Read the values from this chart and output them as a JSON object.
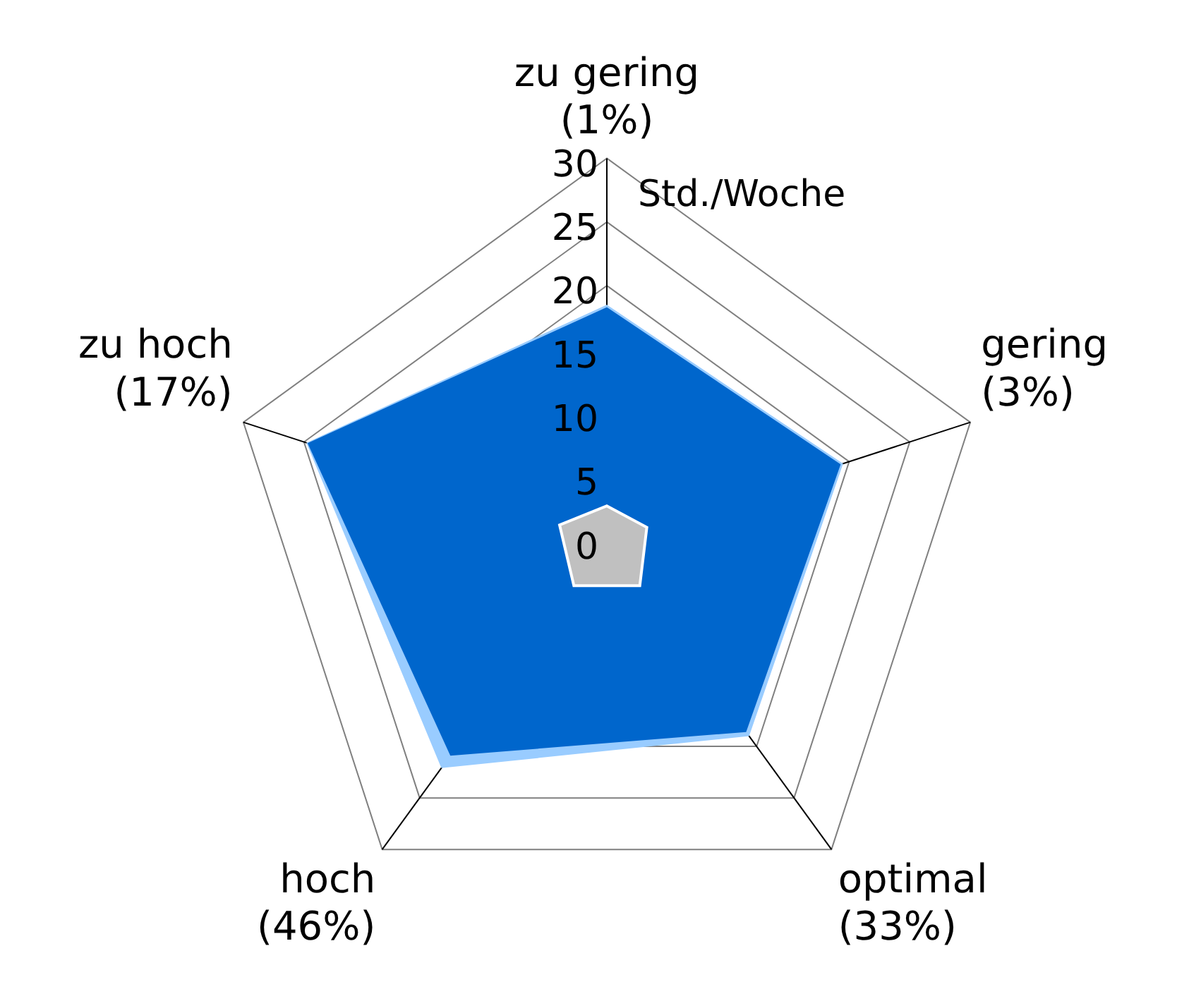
{
  "chart_data": {
    "type": "radar",
    "categories": [
      "zu gering\n(1%)",
      "gering\n(3%)",
      "optimal\n(33%)",
      "hoch\n(46%)",
      "zu hoch\n(17%)"
    ],
    "series": [
      {
        "color": "#99ccff",
        "values": [
          18.5,
          19.5,
          19.0,
          22.1,
          24.8
        ]
      },
      {
        "color": "#0066cc",
        "values": [
          18.3,
          19.3,
          18.6,
          20.9,
          24.7
        ]
      },
      {
        "color": "#c0c0c0",
        "values": [
          2.7,
          3.3,
          4.4,
          4.4,
          3.9
        ]
      }
    ],
    "ylim": [
      0,
      30
    ],
    "yticks": [
      0,
      5,
      10,
      15,
      20,
      25,
      30
    ],
    "annotations": [
      "Std./Woche"
    ],
    "grid": true,
    "legend": false,
    "marker": "none"
  }
}
